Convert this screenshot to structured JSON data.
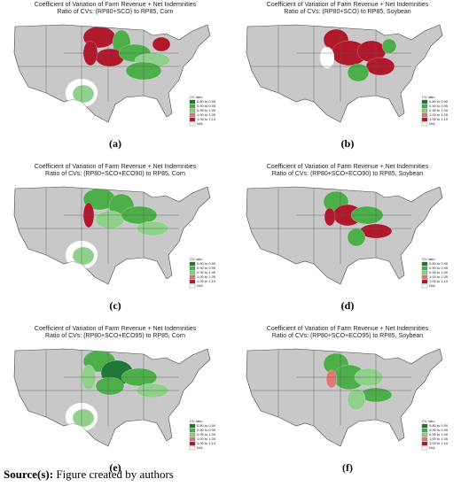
{
  "panels": [
    {
      "title": "Coefficient of Variation of Farm Revenue + Net Indemnities",
      "subtitle": "Ratio of CVs: (RP80+SCO) to RP85, Corn",
      "caption": "(a)"
    },
    {
      "title": "Coefficient of Variation of Farm Revenue + Net Indemnities",
      "subtitle": "Ratio of CVs: (RP80+SCO) to RP85, Soybean",
      "caption": "(b)"
    },
    {
      "title": "Coefficient of Variation of Farm Revenue + Net Indemnities",
      "subtitle": "Ratio of CVs: (RP80+SCO+ECO90) to RP85, Corn",
      "caption": "(c)"
    },
    {
      "title": "Coefficient of Variation of Farm Revenue + Net Indemnities",
      "subtitle": "Ratio of CVs: (RP80+SCO+ECO90) to RP85, Soybean",
      "caption": "(d)"
    },
    {
      "title": "Coefficient of Variation of Farm Revenue + Net Indemnities",
      "subtitle": "Ratio of CVs: (RP80+SCO+ECO95) to RP85, Corn",
      "caption": "(e)"
    },
    {
      "title": "Coefficient of Variation of Farm Revenue + Net Indemnities",
      "subtitle": "Ratio of CVs: (RP80+SCO+ECO95) to RP85, Soybean",
      "caption": "(f)"
    }
  ],
  "legend": {
    "title": "CV ratio",
    "items": [
      "0.80 to 0.90",
      "0.90 to 0.95",
      "0.95 to 1.00",
      "1.00 to 1.05",
      "1.05 to 1.10",
      "N/A"
    ]
  },
  "source": {
    "label": "Source(s):",
    "text": "Figure created by authors"
  }
}
